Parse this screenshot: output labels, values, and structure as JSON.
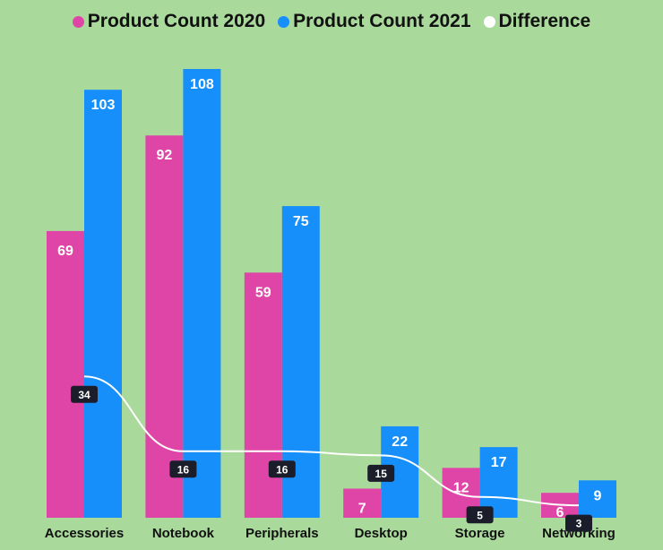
{
  "colors": {
    "background": "#aad99c",
    "series_2020": "#df45a6",
    "series_2021": "#168ffa",
    "difference_line": "#ffffff",
    "difference_label_bg": "#1c1d2b"
  },
  "legend": [
    {
      "name": "Product Count 2020",
      "color": "#df45a6"
    },
    {
      "name": "Product Count 2021",
      "color": "#168ffa"
    },
    {
      "name": "Difference",
      "color": "#ffffff"
    }
  ],
  "chart_data": {
    "type": "bar",
    "categories": [
      "Accessories",
      "Notebook",
      "Peripherals",
      "Desktop",
      "Storage",
      "Networking"
    ],
    "series": [
      {
        "name": "Product Count 2020",
        "type": "bar",
        "values": [
          69,
          92,
          59,
          7,
          12,
          6
        ]
      },
      {
        "name": "Product Count 2021",
        "type": "bar",
        "values": [
          103,
          108,
          75,
          22,
          17,
          9
        ]
      },
      {
        "name": "Difference",
        "type": "line",
        "values": [
          34,
          16,
          16,
          15,
          5,
          3
        ]
      }
    ],
    "ylim": [
      0,
      110
    ],
    "grid": false,
    "legend_position": "top-center",
    "title": "",
    "xlabel": "",
    "ylabel": ""
  }
}
